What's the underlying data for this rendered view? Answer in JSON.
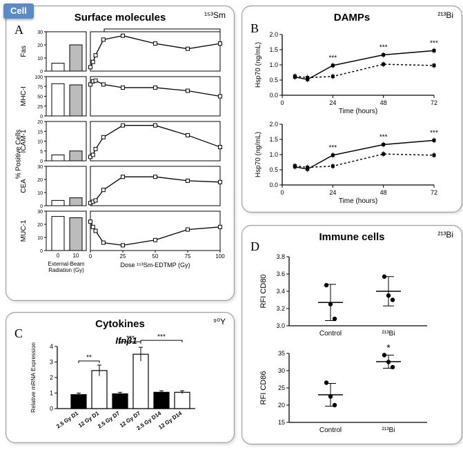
{
  "cell_tag": "Cell",
  "panels": {
    "A": {
      "letter": "A",
      "title": "Surface molecules",
      "isotope_html": "¹⁵³Sm",
      "y_master_label": "% Positive Cells",
      "x_left_label": "External-Beam\nRadiation (Gy)",
      "x_right_label": "Dose ¹⁵³Sm-EDTMP  (Gy)",
      "left_x_ticks": [
        "0",
        "10"
      ],
      "right_x_ticks": [
        "0",
        "25",
        "50",
        "75",
        "100"
      ],
      "rows": [
        {
          "label": "Fas",
          "y_ticks": [
            0,
            10,
            20,
            30
          ],
          "bar_values": [
            6,
            20
          ],
          "line": [
            {
              "x": 0,
              "y": 3
            },
            {
              "x": 2,
              "y": 7
            },
            {
              "x": 4,
              "y": 12
            },
            {
              "x": 10,
              "y": 24
            },
            {
              "x": 25,
              "y": 27
            },
            {
              "x": 50,
              "y": 21
            },
            {
              "x": 75,
              "y": 17
            },
            {
              "x": 100,
              "y": 21
            }
          ]
        },
        {
          "label": "MHC-I",
          "y_ticks": [
            0,
            25,
            50,
            75,
            100
          ],
          "bar_values": [
            82,
            79
          ],
          "line": [
            {
              "x": 0,
              "y": 80
            },
            {
              "x": 2,
              "y": 88
            },
            {
              "x": 4,
              "y": 90
            },
            {
              "x": 10,
              "y": 80
            },
            {
              "x": 25,
              "y": 72
            },
            {
              "x": 50,
              "y": 72
            },
            {
              "x": 75,
              "y": 64
            },
            {
              "x": 100,
              "y": 50
            }
          ]
        },
        {
          "label": "ICAM-1",
          "y_ticks": [
            0,
            5,
            10,
            15,
            20
          ],
          "bar_values": [
            3,
            5
          ],
          "line": [
            {
              "x": 0,
              "y": 2
            },
            {
              "x": 2,
              "y": 3
            },
            {
              "x": 4,
              "y": 6
            },
            {
              "x": 10,
              "y": 12
            },
            {
              "x": 25,
              "y": 18
            },
            {
              "x": 50,
              "y": 18
            },
            {
              "x": 75,
              "y": 13
            },
            {
              "x": 100,
              "y": 7
            }
          ]
        },
        {
          "label": "CEA",
          "y_ticks": [
            0,
            10,
            20,
            30
          ],
          "bar_values": [
            4,
            6
          ],
          "line": [
            {
              "x": 0,
              "y": 2
            },
            {
              "x": 2,
              "y": 3
            },
            {
              "x": 4,
              "y": 4
            },
            {
              "x": 10,
              "y": 12
            },
            {
              "x": 25,
              "y": 22
            },
            {
              "x": 50,
              "y": 22
            },
            {
              "x": 75,
              "y": 19
            },
            {
              "x": 100,
              "y": 18
            }
          ]
        },
        {
          "label": "MUC-1",
          "y_ticks": [
            0,
            10,
            20,
            30
          ],
          "bar_values": [
            26,
            25
          ],
          "line": [
            {
              "x": 0,
              "y": 22
            },
            {
              "x": 2,
              "y": 18
            },
            {
              "x": 4,
              "y": 15
            },
            {
              "x": 10,
              "y": 6
            },
            {
              "x": 25,
              "y": 4
            },
            {
              "x": 50,
              "y": 8
            },
            {
              "x": 75,
              "y": 16
            },
            {
              "x": 100,
              "y": 18
            }
          ]
        }
      ]
    },
    "B": {
      "letter": "B",
      "title": "DAMPs",
      "isotope_html": "²¹³Bi",
      "x_label": "Time (hours)",
      "y_label": "Hsp70 (ng/mL)",
      "x_ticks": [
        0,
        24,
        48,
        72
      ],
      "y_ticks": [
        0.0,
        0.5,
        1.0,
        1.5,
        2.0
      ],
      "series": [
        {
          "name": "solid",
          "points": [
            {
              "x": 6,
              "y": 0.6
            },
            {
              "x": 12,
              "y": 0.52
            },
            {
              "x": 24,
              "y": 0.98
            },
            {
              "x": 48,
              "y": 1.33
            },
            {
              "x": 72,
              "y": 1.47
            }
          ]
        },
        {
          "name": "dashed",
          "points": [
            {
              "x": 6,
              "y": 0.63
            },
            {
              "x": 12,
              "y": 0.58
            },
            {
              "x": 24,
              "y": 0.62
            },
            {
              "x": 48,
              "y": 1.02
            },
            {
              "x": 72,
              "y": 0.98
            }
          ]
        }
      ],
      "stars": [
        {
          "x": 24,
          "label": "***"
        },
        {
          "x": 48,
          "label": "***"
        },
        {
          "x": 72,
          "label": "***"
        }
      ]
    },
    "C": {
      "letter": "C",
      "title": "Cytokines",
      "isotope_html": "⁹⁰Y",
      "gene_title": "Ifnβ1",
      "y_label": "Relative mRNA Expression",
      "y_ticks": [
        0,
        1,
        2,
        3,
        4
      ],
      "categories": [
        "2.5 Gy D1",
        "12 Gy D1",
        "2.5 Gy D7",
        "12 Gy D7",
        "2.5 Gy D14",
        "12 Gy D14"
      ],
      "values": [
        0.9,
        2.45,
        0.95,
        3.5,
        1.05,
        1.05
      ],
      "errors": [
        0.1,
        0.35,
        0.1,
        0.45,
        0.1,
        0.1
      ],
      "fills": [
        "#000000",
        "#ffffff",
        "#000000",
        "#ffffff",
        "#000000",
        "#ffffff"
      ],
      "sig": [
        {
          "pair": [
            0,
            1
          ],
          "label": "**"
        },
        {
          "pair": [
            2,
            3
          ],
          "label": "***"
        },
        {
          "pair": [
            3,
            5
          ],
          "label": "***"
        }
      ]
    },
    "D": {
      "letter": "D",
      "title": "Immune cells",
      "isotope_html": "²¹³Bi",
      "x_categories": [
        "Control",
        "²¹³Bi"
      ],
      "charts": [
        {
          "y_label": "RFI CD80",
          "y_ticks": [
            3.0,
            3.2,
            3.4,
            3.6,
            3.8
          ],
          "groups": [
            {
              "points": [
                3.47,
                3.25,
                3.08
              ],
              "mean": 3.27,
              "err": 0.21
            },
            {
              "points": [
                3.57,
                3.35,
                3.3
              ],
              "mean": 3.4,
              "err": 0.17
            }
          ],
          "sig_label": ""
        },
        {
          "y_label": "RFI CD86",
          "y_ticks": [
            15,
            20,
            25,
            30,
            35
          ],
          "groups": [
            {
              "points": [
                26.5,
                22.5,
                20.0
              ],
              "mean": 23.0,
              "err": 3.3
            },
            {
              "points": [
                34.5,
                32.5,
                31.0
              ],
              "mean": 32.6,
              "err": 1.9
            }
          ],
          "sig_label": "*"
        }
      ]
    }
  },
  "colors": {
    "axis": "#000000",
    "bar_fill_gray": "#bcbcbc",
    "bar_fill_white": "#ffffff",
    "line": "#000000",
    "bg": "#ffffff"
  }
}
